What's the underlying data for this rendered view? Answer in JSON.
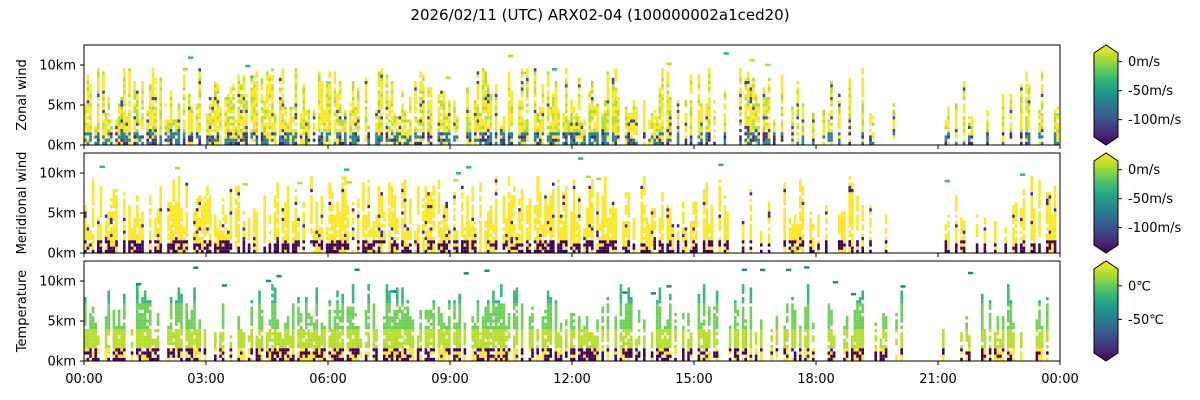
{
  "title": "2026/02/11 (UTC) ARX02-04 (100000002a1ced20)",
  "x_ticks": [
    "00:00",
    "03:00",
    "06:00",
    "09:00",
    "12:00",
    "15:00",
    "18:00",
    "21:00",
    "00:00"
  ],
  "chart_data": [
    {
      "type": "heatmap",
      "ylabel": "Zonal wind",
      "xlim": [
        "00:00",
        "24:00"
      ],
      "ylim_km": [
        0,
        12.5
      ],
      "y_ticks": [
        "0km",
        "5km",
        "10km"
      ],
      "y_tick_values": [
        0,
        5,
        10
      ],
      "colorbar": {
        "ticks": [
          "0m/s",
          "-50m/s",
          "-100m/s"
        ],
        "tick_values": [
          0,
          -50,
          -100
        ],
        "range": [
          -130,
          15
        ],
        "colormap": "viridis",
        "extend": "both"
      },
      "description_values": {
        "typical_aloft": 0,
        "typical_surface": -100
      }
    },
    {
      "type": "heatmap",
      "ylabel": "Meridional wind",
      "xlim": [
        "00:00",
        "24:00"
      ],
      "ylim_km": [
        0,
        12.5
      ],
      "y_ticks": [
        "0km",
        "5km",
        "10km"
      ],
      "y_tick_values": [
        0,
        5,
        10
      ],
      "colorbar": {
        "ticks": [
          "0m/s",
          "-50m/s",
          "-100m/s"
        ],
        "tick_values": [
          0,
          -50,
          -100
        ],
        "range": [
          -130,
          15
        ],
        "colormap": "viridis",
        "extend": "both"
      },
      "description_values": {
        "typical_aloft": 0,
        "typical_surface": -130
      }
    },
    {
      "type": "heatmap",
      "ylabel": "Temperature",
      "xlim": [
        "00:00",
        "24:00"
      ],
      "ylim_km": [
        0,
        12.5
      ],
      "y_ticks": [
        "0km",
        "5km",
        "10km"
      ],
      "y_tick_values": [
        0,
        5,
        10
      ],
      "colorbar": {
        "ticks": [
          "0℃",
          "-50℃"
        ],
        "tick_values": [
          0,
          -50
        ],
        "range": [
          -100,
          25
        ],
        "colormap": "viridis",
        "extend": "both"
      },
      "description_values": {
        "typical_aloft": -20,
        "typical_surface": -100
      }
    }
  ],
  "colors": {
    "viridis": [
      "#440154",
      "#482878",
      "#3e4989",
      "#31688e",
      "#26828e",
      "#1f9e89",
      "#35b779",
      "#6ece58",
      "#b5de2b",
      "#fde725"
    ]
  }
}
